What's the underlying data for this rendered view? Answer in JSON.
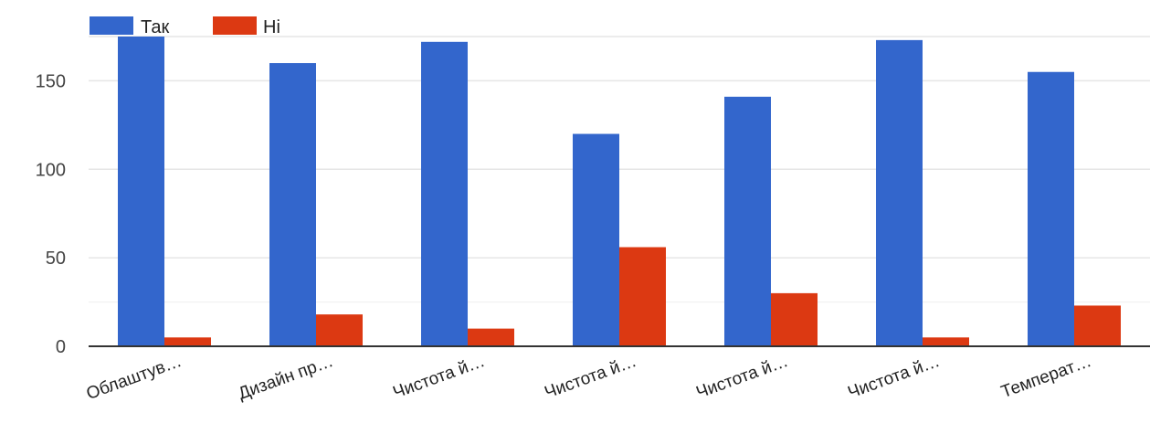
{
  "chart_data": {
    "type": "bar",
    "categories": [
      "Облаштув…",
      "Дизайн пр…",
      "Чистота й…",
      "Чистота й…",
      "Чистота й…",
      "Чистота й…",
      "Температ…"
    ],
    "series": [
      {
        "name": "Так",
        "color": "#3366cc",
        "values": [
          175,
          160,
          172,
          120,
          141,
          173,
          155
        ]
      },
      {
        "name": "Ні",
        "color": "#dc3912",
        "values": [
          5,
          18,
          10,
          56,
          30,
          5,
          23
        ]
      }
    ],
    "title": "",
    "xlabel": "",
    "ylabel": "",
    "ylim": [
      0,
      175
    ],
    "yticks": [
      0,
      50,
      100,
      150
    ],
    "grid": true,
    "legend_position": "top-left"
  }
}
